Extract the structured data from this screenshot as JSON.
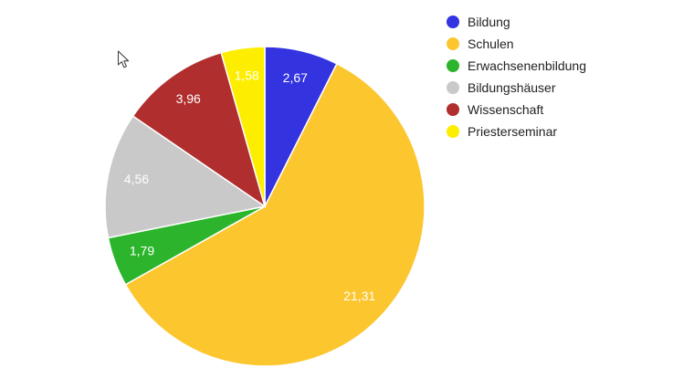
{
  "page": {
    "background_color": "#ffffff"
  },
  "chart_data": {
    "type": "pie",
    "title": "",
    "legend_position": "right",
    "start_angle": "12-oclock-clockwise",
    "total": 35.87,
    "slice_label_color": "#ffffff",
    "legend_text_color": "#222222",
    "slice_border_color": "#ffffff",
    "slices": [
      {
        "name": "Bildung",
        "value": 2.67,
        "label": "2,67",
        "color": "#3333E0"
      },
      {
        "name": "Schulen",
        "value": 21.31,
        "label": "21,31",
        "color": "#FCC62F"
      },
      {
        "name": "Erwachsenenbildung",
        "value": 1.79,
        "label": "1,79",
        "color": "#2CB52C"
      },
      {
        "name": "Bildungshäuser",
        "value": 4.56,
        "label": "4,56",
        "color": "#C9C9C9"
      },
      {
        "name": "Wissenschaft",
        "value": 3.96,
        "label": "3,96",
        "color": "#B02E2E"
      },
      {
        "name": "Priesterseminar",
        "value": 1.58,
        "label": "1,58",
        "color": "#FDEE00"
      }
    ]
  }
}
